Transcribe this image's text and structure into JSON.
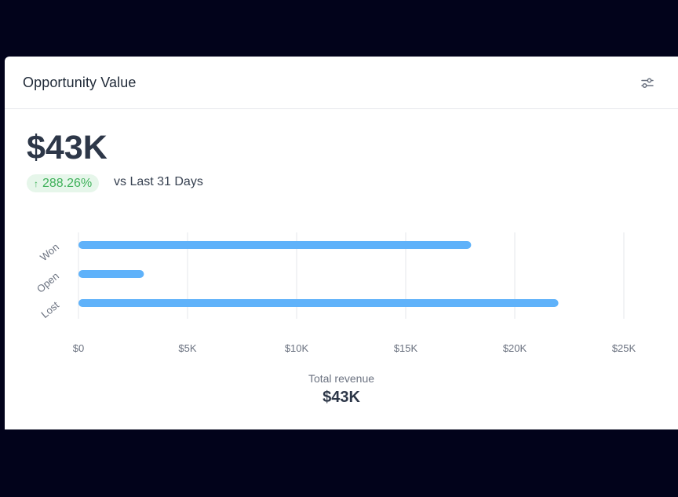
{
  "card": {
    "title": "Opportunity Value",
    "filter_icon": "sliders-icon",
    "value": "$43K",
    "change": "288.26%",
    "change_icon": "arrow-up-icon",
    "comparison": "vs Last 31 Days",
    "footer_label": "Total revenue",
    "footer_value": "$43K"
  },
  "colors": {
    "bar": "#5fb2fa",
    "badge_bg": "#e6f6ea",
    "badge_text": "#3fb15a",
    "backdrop": "#02031b"
  },
  "chart_data": {
    "type": "bar",
    "orientation": "horizontal",
    "categories": [
      "Won",
      "Open",
      "Lost"
    ],
    "values": [
      18000,
      3000,
      22000
    ],
    "xlim": [
      0,
      25000
    ],
    "xticks": [
      0,
      5000,
      10000,
      15000,
      20000,
      25000
    ],
    "xtick_labels": [
      "$0",
      "$5K",
      "$10K",
      "$15K",
      "$20K",
      "$25K"
    ],
    "grid": "vertical",
    "legend": "none"
  }
}
